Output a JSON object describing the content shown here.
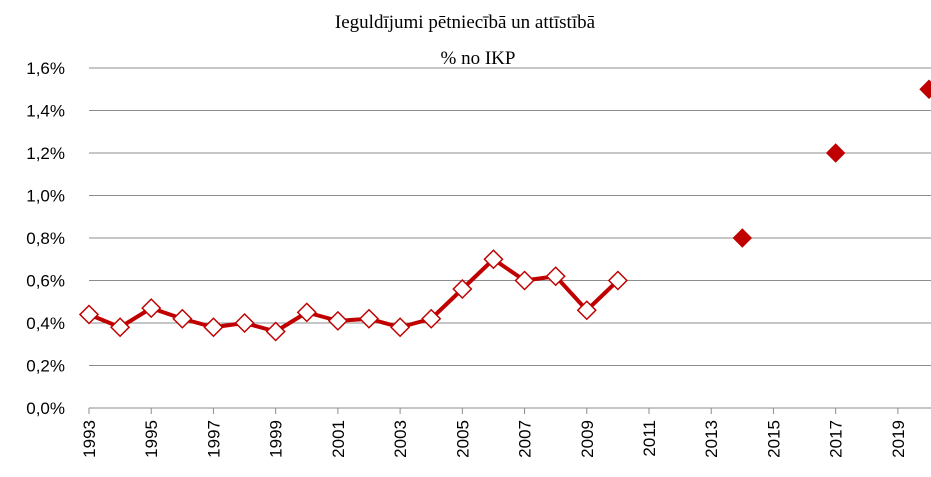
{
  "chart_data": {
    "type": "line",
    "title": "Ieguldījumi pētniecībā un attīstībā",
    "subtitle": "% no IKP",
    "series": [
      {
        "color": "#c00000",
        "marker": "open-diamond",
        "line": true,
        "x": [
          1993,
          1994,
          1995,
          1996,
          1997,
          1998,
          1999,
          2000,
          2001,
          2002,
          2003,
          2004,
          2005,
          2006,
          2007,
          2008,
          2009,
          2010
        ],
        "values": [
          0.44,
          0.38,
          0.47,
          0.42,
          0.38,
          0.4,
          0.36,
          0.45,
          0.41,
          0.42,
          0.38,
          0.42,
          0.56,
          0.7,
          0.6,
          0.62,
          0.46,
          0.6
        ]
      },
      {
        "color": "#c00000",
        "marker": "filled-diamond",
        "line": false,
        "x": [
          2014,
          2017,
          2020
        ],
        "values": [
          0.8,
          1.2,
          1.5
        ]
      }
    ],
    "xlim": [
      1993,
      2020
    ],
    "xticks": [
      1993,
      1995,
      1997,
      1999,
      2001,
      2003,
      2005,
      2007,
      2009,
      2011,
      2013,
      2015,
      2017,
      2019
    ],
    "ylim": [
      0,
      1.6
    ],
    "yticks": [
      {
        "value": 0,
        "label": "0,0%"
      },
      {
        "value": 0.2,
        "label": "0,2%"
      },
      {
        "value": 0.4,
        "label": "0,4%"
      },
      {
        "value": 0.6,
        "label": "0,6%"
      },
      {
        "value": 0.8,
        "label": "0,8%"
      },
      {
        "value": 1.0,
        "label": "1,0%"
      },
      {
        "value": 1.2,
        "label": "1,2%"
      },
      {
        "value": 1.4,
        "label": "1,4%"
      },
      {
        "value": 1.6,
        "label": "1,6%"
      }
    ],
    "grid": true
  }
}
